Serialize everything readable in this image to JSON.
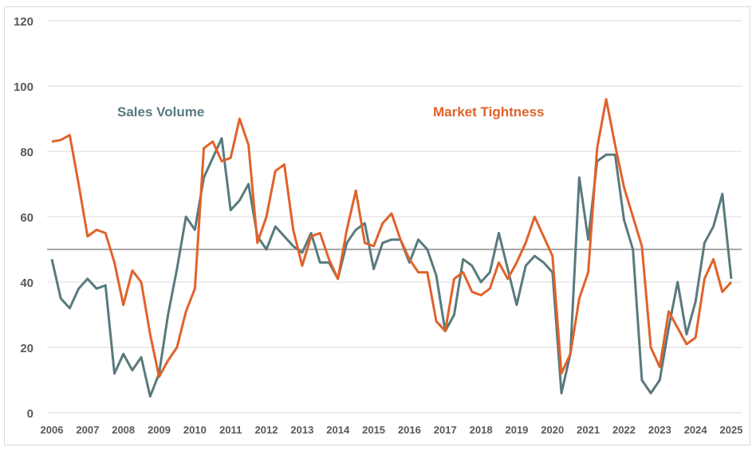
{
  "chart_data": {
    "type": "line",
    "title": "",
    "xlabel": "",
    "ylabel": "",
    "ylim": [
      0,
      120
    ],
    "xlim": [
      2006,
      2025
    ],
    "y_ticks": [
      "0",
      "20",
      "40",
      "60",
      "80",
      "100",
      "120"
    ],
    "x_ticks": [
      "2006",
      "2007",
      "2008",
      "2009",
      "2010",
      "2011",
      "2012",
      "2013",
      "2014",
      "2015",
      "2016",
      "2017",
      "2018",
      "2019",
      "2020",
      "2021",
      "2022",
      "2023",
      "2024",
      "2025"
    ],
    "grid": true,
    "frequency": "quarterly",
    "reference_line": 50,
    "colors": {
      "reference_line": "#a6a6a6",
      "grid": "#d9d9d9"
    },
    "series": [
      {
        "name": "Sales Volume",
        "color": "#587a7d",
        "values": [
          47,
          35,
          32,
          38,
          41,
          38,
          39,
          12,
          18,
          13,
          17,
          5,
          12,
          30,
          44,
          60,
          56,
          72,
          78,
          84,
          62,
          65,
          70,
          54,
          50,
          57,
          54,
          51,
          49,
          55,
          46,
          46,
          41,
          52,
          56,
          58,
          44,
          52,
          53,
          53,
          46,
          53,
          50,
          42,
          25,
          30,
          47,
          45,
          40,
          43,
          55,
          44,
          33,
          45,
          48,
          46,
          43,
          6,
          18,
          72,
          53,
          77,
          79,
          79,
          59,
          50,
          10,
          6,
          10,
          26,
          40,
          24,
          34,
          52,
          57,
          67,
          41
        ]
      },
      {
        "name": "Market Tightness",
        "color": "#e0622a",
        "values": [
          83,
          83.5,
          85,
          70,
          54,
          56,
          55,
          46,
          33,
          43.5,
          40,
          24,
          11,
          16,
          20,
          31,
          38,
          81,
          83,
          77,
          78,
          90,
          82,
          52,
          60,
          74,
          76,
          56,
          45,
          54,
          55,
          47,
          41,
          56,
          68,
          52,
          51,
          58,
          61,
          53,
          47,
          43,
          43,
          28,
          25,
          41,
          43,
          37,
          36,
          38,
          46,
          41,
          46,
          52,
          60,
          54,
          48,
          12,
          18,
          35,
          43,
          81,
          96,
          82,
          69,
          60,
          51,
          20,
          14,
          31,
          26,
          21,
          23,
          41,
          47,
          37,
          40
        ]
      }
    ]
  }
}
